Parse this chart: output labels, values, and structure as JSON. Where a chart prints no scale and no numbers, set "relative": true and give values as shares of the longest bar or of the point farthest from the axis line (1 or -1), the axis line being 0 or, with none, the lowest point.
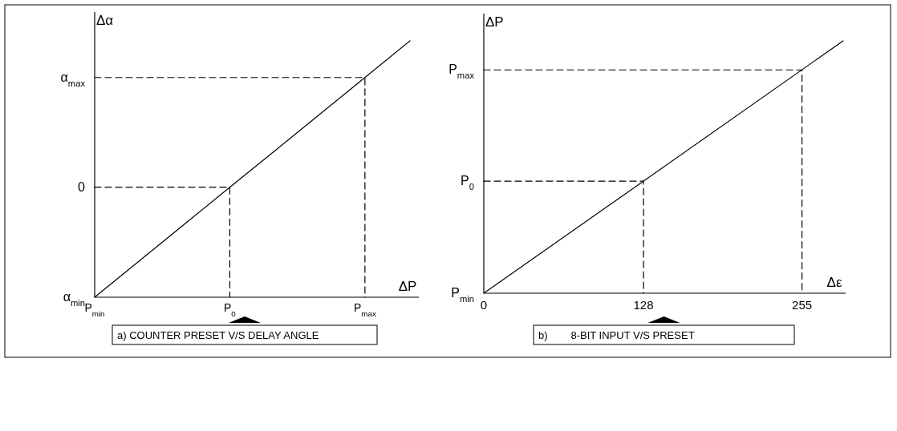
{
  "chart_data": [
    {
      "type": "line",
      "xlabel": "ΔP",
      "ylabel": "Δα",
      "relative": true,
      "categories": [
        "P$_{min}$",
        null,
        null,
        "P$_{0}$",
        null,
        null,
        "P$_{max}$",
        null
      ],
      "grid": false,
      "line_style": "solid",
      "series": [
        {
          "color": "#000000",
          "values": [
            0,
            0.143,
            0.286,
            0.429,
            0.571,
            0.714,
            0.857,
            1
          ]
        },
        {
          "color": "#000000",
          "line_style": "dashed",
          "x": [
            "P$_{min}$",
            "P$_{0}$",
            "P$_{0}$"
          ],
          "values": [
            0.429,
            0.429,
            0
          ]
        },
        {
          "color": "#000000",
          "line_style": "dashed",
          "x": [
            "P$_{min}$",
            "P$_{max}$",
            "P$_{max}$"
          ],
          "values": [
            0.857,
            0.857,
            0
          ]
        }
      ],
      "annotations": [
        {
          "text": "α$_{min}$",
          "x": "P$_{min}$",
          "y": 0
        },
        {
          "text": "0",
          "x": "P$_{min}$",
          "y": 0.429
        },
        {
          "text": "α$_{max}$",
          "x": "P$_{min}$",
          "y": 0.857
        },
        "a) COUNTER PRESET V/S DELAY ANGLE"
      ]
    },
    {
      "type": "line",
      "xlabel": "Δε",
      "ylabel": "ΔP",
      "relative": true,
      "xlim": [
        0,
        290
      ],
      "xticks": [
        0,
        128,
        255
      ],
      "grid": false,
      "line_style": "solid",
      "series": [
        {
          "color": "#000000",
          "x": [
            0,
            288
          ],
          "values": [
            0,
            1
          ]
        },
        {
          "color": "#000000",
          "line_style": "dashed",
          "x": [
            0,
            128,
            128
          ],
          "values": [
            0.444,
            0.444,
            0
          ]
        },
        {
          "color": "#000000",
          "line_style": "dashed",
          "x": [
            0,
            255,
            255
          ],
          "values": [
            0.885,
            0.885,
            0
          ]
        }
      ],
      "annotations": [
        {
          "text": "P$_{min}$",
          "x": 0,
          "y": 0
        },
        {
          "text": "P$_{0}$",
          "x": 0,
          "y": 0.444
        },
        {
          "text": "P$_{max}$",
          "x": 0,
          "y": 0.885
        },
        "b)        8-BIT INPUT V/S PRESET"
      ]
    }
  ]
}
